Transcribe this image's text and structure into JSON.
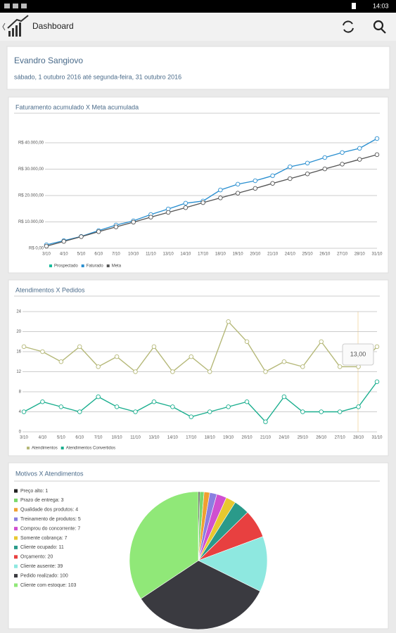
{
  "status_bar": {
    "time": "14:03"
  },
  "app_bar": {
    "title": "Dashboard"
  },
  "profile": {
    "name": "Evandro Sangiovo",
    "period": "sábado, 1 outubro 2016 até segunda-feira, 31 outubro 2016"
  },
  "chart_data": [
    {
      "type": "line",
      "title": "Faturamento acumulado X Meta acumulada",
      "categories": [
        "3/10",
        "4/10",
        "5/10",
        "6/10",
        "7/10",
        "10/10",
        "11/10",
        "13/10",
        "14/10",
        "17/10",
        "18/10",
        "19/10",
        "20/10",
        "21/10",
        "24/10",
        "25/10",
        "26/10",
        "27/10",
        "28/10",
        "31/10"
      ],
      "series": [
        {
          "name": "Prospectado",
          "color": "#1abc9c",
          "values": [
            null,
            null,
            null,
            null,
            null,
            null,
            null,
            null,
            null,
            null,
            null,
            null,
            null,
            null,
            null,
            null,
            null,
            null,
            null,
            null
          ]
        },
        {
          "name": "Faturado",
          "color": "#2a8fd0",
          "values": [
            1300,
            2900,
            4500,
            6700,
            8800,
            10400,
            12800,
            14900,
            17100,
            17900,
            22100,
            24300,
            25600,
            27500,
            30900,
            32300,
            34400,
            36300,
            37900,
            41600
          ]
        },
        {
          "name": "Meta",
          "color": "#555555",
          "values": [
            800,
            2600,
            4400,
            6300,
            8100,
            9900,
            11800,
            13600,
            15400,
            17300,
            19100,
            20900,
            22700,
            24600,
            26400,
            28200,
            30100,
            31900,
            33700,
            35500
          ]
        }
      ],
      "ylim": [
        0,
        48000
      ],
      "yticks": [
        {
          "value": 0,
          "label": "R$ 0,00"
        },
        {
          "value": 10000,
          "label": "R$ 10.000,00"
        },
        {
          "value": 20000,
          "label": "R$ 20.000,00"
        },
        {
          "value": 30000,
          "label": "R$ 30.000,00"
        },
        {
          "value": 40000,
          "label": "R$ 40.000,00"
        }
      ],
      "grid": true
    },
    {
      "type": "line",
      "title": "Atendimentos X Pedidos",
      "categories": [
        "3/10",
        "4/10",
        "5/10",
        "6/10",
        "7/10",
        "10/10",
        "11/10",
        "13/10",
        "14/10",
        "17/10",
        "18/10",
        "19/10",
        "20/10",
        "21/10",
        "24/10",
        "25/10",
        "26/10",
        "27/10",
        "28/10",
        "31/10"
      ],
      "series": [
        {
          "name": "Atendimentos",
          "color": "#b5b878",
          "values": [
            17,
            16,
            14,
            17,
            13,
            15,
            12,
            17,
            12,
            15,
            12,
            22,
            18,
            12,
            14,
            13,
            18,
            13,
            13,
            17
          ]
        },
        {
          "name": "Atendimentos Convertidos",
          "color": "#1aae8e",
          "values": [
            4,
            6,
            5,
            4,
            7,
            5,
            4,
            6,
            5,
            3,
            4,
            5,
            6,
            2,
            7,
            4,
            4,
            4,
            5,
            10
          ]
        }
      ],
      "ylim": [
        0,
        24
      ],
      "yticks": [
        0,
        4,
        8,
        12,
        16,
        20,
        24
      ],
      "grid": true,
      "annotation": "13,00"
    },
    {
      "type": "pie",
      "title": "Motivos X Atendimentos",
      "values": [
        1,
        3,
        4,
        5,
        7,
        7,
        11,
        20,
        39,
        100,
        103
      ],
      "value_labels": [
        "Preço alto: 1",
        "Prazo de entrega: 3",
        "Qualidade dos produtos: 4",
        "Treinamento de produtos: 5",
        "Comprou do concorrente: 7",
        "Somente cobrança: 7",
        "Cliente ocupado: 11",
        "Orçamento: 20",
        "Cliente ausente: 39",
        "Pedido realizado: 100",
        "Cliente com estoque: 103"
      ],
      "colors": [
        "#222222",
        "#7ad86b",
        "#f0a030",
        "#8a7fe0",
        "#d050d0",
        "#e8c830",
        "#2a9a8a",
        "#e84040",
        "#8ee8e0",
        "#3a3a40",
        "#90e878"
      ]
    }
  ]
}
